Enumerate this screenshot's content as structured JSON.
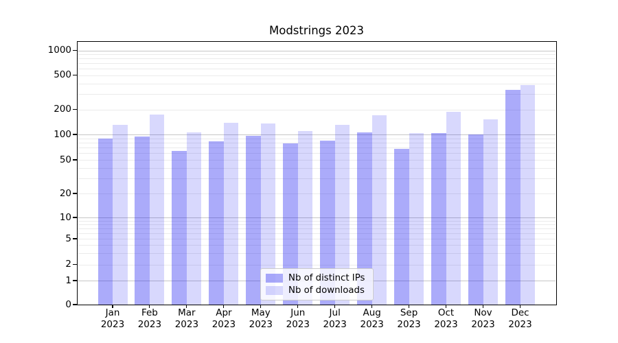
{
  "chart_data": {
    "type": "bar",
    "title": "Modstrings 2023",
    "yscale": "symlog",
    "ylim": [
      0,
      1300
    ],
    "yticks": [
      0,
      1,
      2,
      5,
      10,
      20,
      50,
      100,
      200,
      500,
      1000
    ],
    "grid": "horizontal major and minor gridlines",
    "categories": [
      {
        "month": "Jan",
        "year": "2023"
      },
      {
        "month": "Feb",
        "year": "2023"
      },
      {
        "month": "Mar",
        "year": "2023"
      },
      {
        "month": "Apr",
        "year": "2023"
      },
      {
        "month": "May",
        "year": "2023"
      },
      {
        "month": "Jun",
        "year": "2023"
      },
      {
        "month": "Jul",
        "year": "2023"
      },
      {
        "month": "Aug",
        "year": "2023"
      },
      {
        "month": "Sep",
        "year": "2023"
      },
      {
        "month": "Oct",
        "year": "2023"
      },
      {
        "month": "Nov",
        "year": "2023"
      },
      {
        "month": "Dec",
        "year": "2023"
      }
    ],
    "series": [
      {
        "name": "Nb of distinct IPs",
        "color": "rgba(13,13,242,0.35)",
        "values": [
          90,
          94,
          64,
          83,
          96,
          79,
          84,
          106,
          67,
          103,
          100,
          339
        ]
      },
      {
        "name": "Nb of downloads",
        "color": "rgba(13,13,242,0.16)",
        "values": [
          130,
          172,
          105,
          137,
          135,
          110,
          131,
          169,
          104,
          186,
          151,
          384
        ]
      }
    ],
    "legend": {
      "position": "lower-center"
    }
  }
}
